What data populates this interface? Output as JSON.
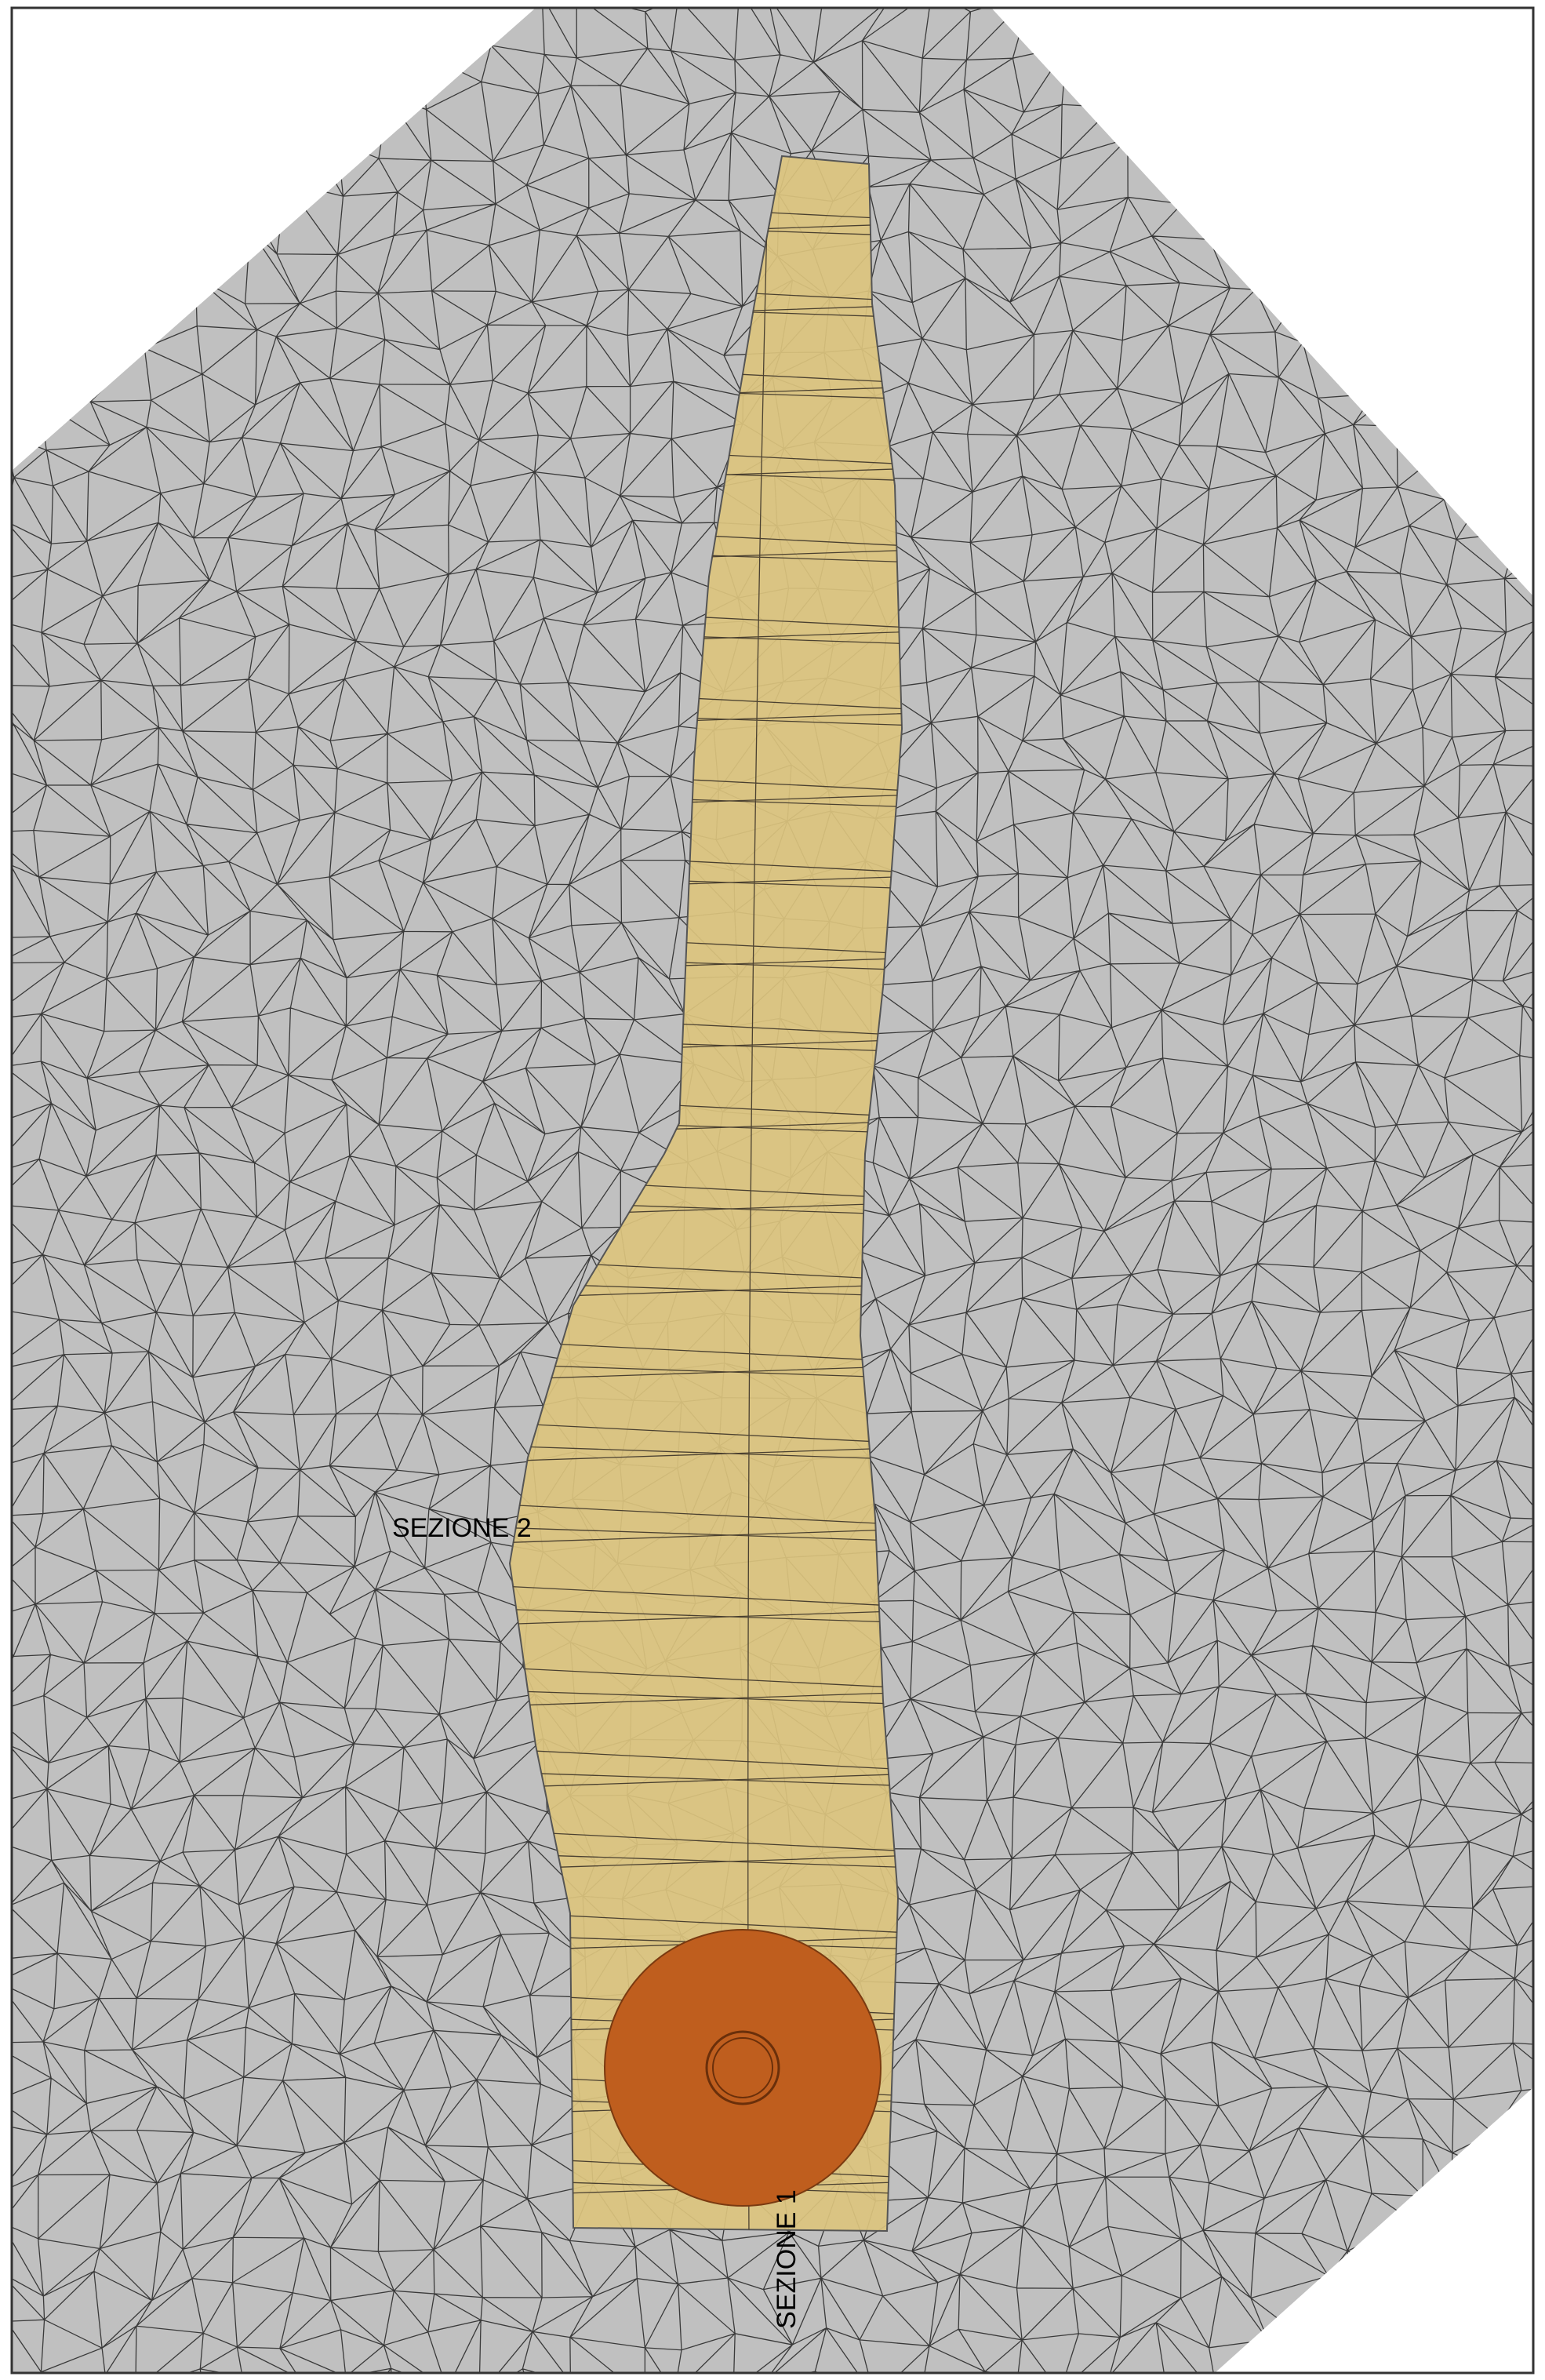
{
  "labels": {
    "section_2": "SEZIONE 2",
    "section_1": "SEZIONE 1"
  }
}
